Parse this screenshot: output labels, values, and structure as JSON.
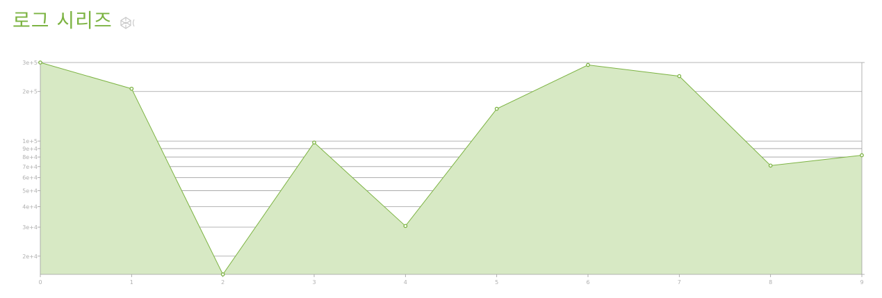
{
  "title": "로그 시리즈",
  "icons": {
    "title_icon": "codepen-icon"
  },
  "colors": {
    "title": "#7cb342",
    "line": "#7cb342",
    "area": "#d7e9c4",
    "grid": "#9e9e9e",
    "tick": "#b0b0b0"
  },
  "chart_data": {
    "type": "area",
    "x": [
      0,
      1,
      2,
      3,
      4,
      5,
      6,
      7,
      8,
      9
    ],
    "x_tick_labels": [
      "0",
      "1",
      "2",
      "3",
      "4",
      "5",
      "6",
      "7",
      "8",
      "9"
    ],
    "values": [
      300000,
      208000,
      15500,
      98000,
      30500,
      157000,
      290000,
      248000,
      71000,
      82000
    ],
    "ylim": [
      15500,
      300000
    ],
    "y_scale": "log",
    "y_ticks": [
      20000,
      30000,
      40000,
      50000,
      60000,
      70000,
      80000,
      90000,
      100000,
      200000,
      300000
    ],
    "y_tick_labels": [
      "2e+4",
      "3e+4",
      "4e+4",
      "5e+4",
      "6e+4",
      "7e+4",
      "8e+4",
      "9e+4",
      "1e+5",
      "2e+5",
      "3e+5"
    ],
    "grid": true,
    "legend": "none",
    "markers": "hollow-circle"
  }
}
